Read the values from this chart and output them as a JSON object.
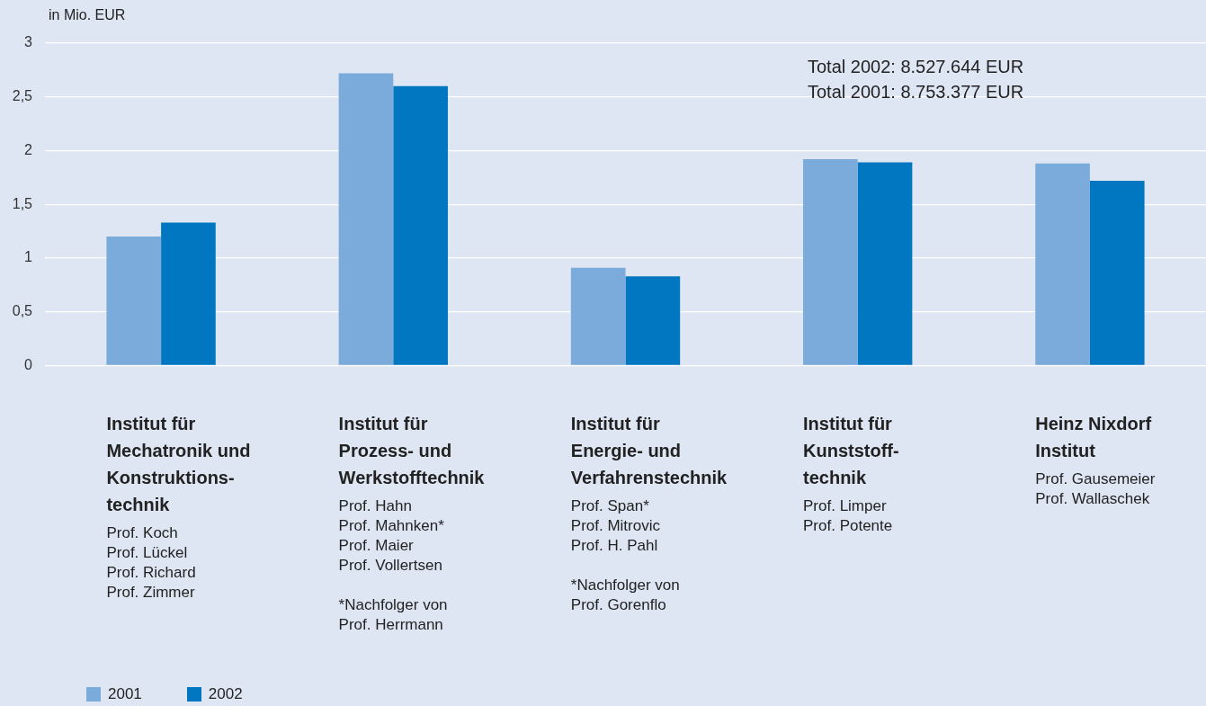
{
  "chart_data": {
    "type": "bar",
    "ylabel": "in Mio. EUR",
    "categories": [
      "Institut für\nMechatronik und\nKonstruktions-\ntechnik",
      "Institut für\nProzess- und\nWerkstofftechnik",
      "Institut für\nEnergie- und\nVerfahrenstechnik",
      "Institut für\nKunststoff-\ntechnik",
      "Heinz Nixdorf\nInstitut"
    ],
    "series": [
      {
        "name": "2001",
        "color": "#7aabdb",
        "values": [
          1.2,
          2.72,
          0.91,
          1.92,
          1.88
        ]
      },
      {
        "name": "2002",
        "color": "#0077c0",
        "values": [
          1.33,
          2.6,
          0.83,
          1.89,
          1.72
        ]
      }
    ],
    "ylim": [
      0,
      3
    ],
    "yticks": [
      0,
      {
        "value": 0.5,
        "label": "0,5"
      },
      1,
      {
        "value": 1.5,
        "label": "1,5"
      },
      2,
      {
        "value": 2.5,
        "label": "2,5"
      },
      3
    ],
    "grid": "y",
    "legend": "bottom left",
    "annotations": [
      "Total 2002: 8.527.644 EUR",
      "Total 2001: 8.753.377 EUR",
      "Prof. Koch\nProf. Lückel\nProf. Richard\nProf. Zimmer",
      "Prof. Hahn\nProf. Mahnken*\nProf. Maier\nProf. Vollertsen",
      "*Nachfolger von\nProf. Herrmann",
      "Prof. Span*\nProf. Mitrovic\nProf. H. Pahl",
      "*Nachfolger von\nProf. Gorenflo",
      "Prof. Limper\nProf. Potente",
      "Prof. Gausemeier\nProf. Wallaschek"
    ]
  }
}
